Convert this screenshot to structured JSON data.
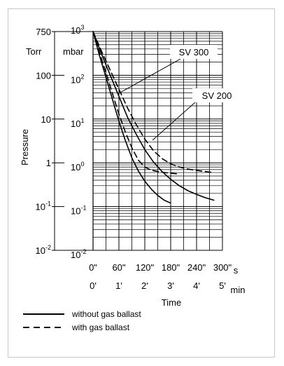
{
  "chart_data": {
    "type": "line",
    "y_scale": "log",
    "ylim": [
      0.01,
      1000
    ],
    "xlim": [
      0,
      300
    ],
    "y_ticks": [
      0.01,
      0.1,
      1,
      10,
      100,
      1000
    ],
    "ylabel": "Pressure",
    "xlabel": "Time",
    "torr_unit": "Torr",
    "mbar_unit": "mbar",
    "seconds_unit": "s",
    "minutes_unit": "min",
    "torr_tick_labels": [
      {
        "value": 1000,
        "label": "750"
      },
      {
        "value": 100,
        "label": "100"
      },
      {
        "value": 10,
        "label": "10"
      },
      {
        "value": 1,
        "label": "1"
      },
      {
        "value": 0.1,
        "label": "10",
        "sup": "-1"
      },
      {
        "value": 0.01,
        "label": "10",
        "sup": "-2"
      }
    ],
    "mbar_tick_labels": [
      {
        "value": 1000,
        "label": "10",
        "sup": "3"
      },
      {
        "value": 100,
        "label": "10",
        "sup": "2"
      },
      {
        "value": 10,
        "label": "10",
        "sup": "1"
      },
      {
        "value": 1,
        "label": "10",
        "sup": "0"
      },
      {
        "value": 0.1,
        "label": "10",
        "sup": "-1"
      },
      {
        "value": 0.01,
        "label": "10",
        "sup": "-2"
      }
    ],
    "x_tick_labels_seconds": [
      {
        "value": 0,
        "label": "0\""
      },
      {
        "value": 60,
        "label": "60\""
      },
      {
        "value": 120,
        "label": "120\""
      },
      {
        "value": 180,
        "label": "180\""
      },
      {
        "value": 240,
        "label": "240\""
      },
      {
        "value": 300,
        "label": "300\""
      }
    ],
    "x_tick_labels_minutes": [
      {
        "value": 0,
        "label": "0'"
      },
      {
        "value": 60,
        "label": "1'"
      },
      {
        "value": 120,
        "label": "2'"
      },
      {
        "value": 180,
        "label": "3'"
      },
      {
        "value": 240,
        "label": "4'"
      },
      {
        "value": 300,
        "label": "5'"
      }
    ],
    "series": [
      {
        "name": "SV 300",
        "style": "solid",
        "x": [
          0,
          15,
          30,
          45,
          60,
          75,
          90,
          105,
          120,
          135,
          150,
          165,
          180
        ],
        "y": [
          1000,
          280,
          90,
          28,
          9,
          3.2,
          1.3,
          0.65,
          0.38,
          0.25,
          0.18,
          0.14,
          0.12
        ]
      },
      {
        "name": "SV 300",
        "style": "dashed",
        "x": [
          0,
          15,
          30,
          45,
          60,
          75,
          90,
          105,
          120,
          135,
          150,
          165,
          180,
          195
        ],
        "y": [
          1000,
          330,
          115,
          38,
          13,
          5,
          2.2,
          1.15,
          0.8,
          0.68,
          0.63,
          0.6,
          0.58,
          0.56
        ]
      },
      {
        "name": "SV 200",
        "style": "solid",
        "x": [
          0,
          20,
          40,
          60,
          80,
          100,
          120,
          140,
          160,
          180,
          200,
          220,
          240,
          260,
          280
        ],
        "y": [
          1000,
          300,
          100,
          33,
          11,
          4.5,
          2,
          1.05,
          0.63,
          0.42,
          0.3,
          0.23,
          0.19,
          0.16,
          0.14
        ]
      },
      {
        "name": "SV 200",
        "style": "dashed",
        "x": [
          0,
          20,
          40,
          60,
          80,
          100,
          120,
          140,
          160,
          180,
          200,
          220,
          240,
          260,
          280
        ],
        "y": [
          1000,
          350,
          130,
          48,
          18,
          7.5,
          3.5,
          1.9,
          1.25,
          0.95,
          0.8,
          0.72,
          0.67,
          0.63,
          0.6
        ]
      }
    ],
    "annotations": [
      {
        "text": "SV 300",
        "points_to": "SV 300"
      },
      {
        "text": "SV 200",
        "points_to": "SV 200"
      }
    ],
    "legend": {
      "position": "bottom-left",
      "items": [
        {
          "style": "solid",
          "label": "without gas ballast"
        },
        {
          "style": "dashed",
          "label": "with gas ballast"
        }
      ]
    },
    "grid": true
  }
}
